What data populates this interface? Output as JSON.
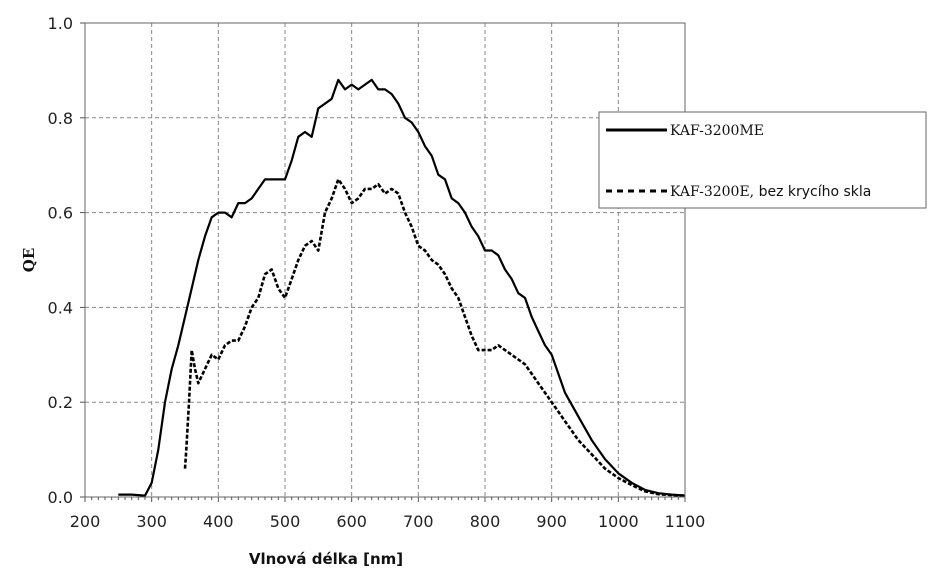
{
  "chart_data": {
    "type": "line",
    "xlabel": "Vlnová délka [nm]",
    "ylabel": "QE",
    "xlim": [
      200,
      1100
    ],
    "ylim": [
      0,
      1.0
    ],
    "x_ticks": [
      "200",
      "300",
      "400",
      "500",
      "600",
      "700",
      "800",
      "900",
      "1000",
      "1100"
    ],
    "y_ticks": [
      "0.0",
      "0.2",
      "0.4",
      "0.6",
      "0.8",
      "1.0"
    ],
    "grid": true,
    "legend_position": "right",
    "series": [
      {
        "name": "KAF-3200ME",
        "style": "solid",
        "x": [
          250,
          270,
          290,
          300,
          310,
          320,
          330,
          340,
          350,
          360,
          370,
          380,
          390,
          400,
          410,
          420,
          430,
          440,
          450,
          460,
          470,
          480,
          490,
          500,
          510,
          520,
          530,
          540,
          550,
          560,
          570,
          580,
          590,
          600,
          610,
          620,
          630,
          640,
          650,
          660,
          670,
          680,
          690,
          700,
          710,
          720,
          730,
          740,
          750,
          760,
          770,
          780,
          790,
          800,
          810,
          820,
          830,
          840,
          850,
          860,
          870,
          880,
          890,
          900,
          920,
          940,
          960,
          980,
          1000,
          1020,
          1040,
          1060,
          1080,
          1100
        ],
        "values": [
          0.005,
          0.005,
          0.003,
          0.03,
          0.1,
          0.2,
          0.27,
          0.32,
          0.38,
          0.44,
          0.5,
          0.55,
          0.59,
          0.6,
          0.6,
          0.59,
          0.62,
          0.62,
          0.63,
          0.65,
          0.67,
          0.67,
          0.67,
          0.67,
          0.71,
          0.76,
          0.77,
          0.76,
          0.82,
          0.83,
          0.84,
          0.88,
          0.86,
          0.87,
          0.86,
          0.87,
          0.88,
          0.86,
          0.86,
          0.85,
          0.83,
          0.8,
          0.79,
          0.77,
          0.74,
          0.72,
          0.68,
          0.67,
          0.63,
          0.62,
          0.6,
          0.57,
          0.55,
          0.52,
          0.52,
          0.51,
          0.48,
          0.46,
          0.43,
          0.42,
          0.38,
          0.35,
          0.32,
          0.3,
          0.22,
          0.17,
          0.12,
          0.08,
          0.05,
          0.03,
          0.015,
          0.008,
          0.005,
          0.003
        ]
      },
      {
        "name": "KAF-3200E, bez krycího skla",
        "style": "dashed",
        "x": [
          350,
          352,
          356,
          360,
          365,
          370,
          380,
          390,
          400,
          410,
          420,
          430,
          440,
          450,
          460,
          470,
          480,
          490,
          500,
          510,
          520,
          530,
          540,
          550,
          560,
          570,
          580,
          590,
          600,
          610,
          620,
          630,
          640,
          650,
          660,
          670,
          680,
          690,
          700,
          710,
          720,
          730,
          740,
          750,
          760,
          770,
          780,
          790,
          800,
          810,
          820,
          830,
          840,
          850,
          860,
          870,
          880,
          890,
          900,
          920,
          940,
          960,
          980,
          1000,
          1020,
          1040,
          1060,
          1080,
          1100
        ],
        "values": [
          0.06,
          0.1,
          0.2,
          0.31,
          0.27,
          0.24,
          0.27,
          0.3,
          0.29,
          0.32,
          0.33,
          0.33,
          0.36,
          0.4,
          0.42,
          0.47,
          0.48,
          0.44,
          0.42,
          0.46,
          0.5,
          0.53,
          0.54,
          0.52,
          0.6,
          0.63,
          0.67,
          0.65,
          0.62,
          0.63,
          0.65,
          0.65,
          0.66,
          0.64,
          0.65,
          0.64,
          0.6,
          0.57,
          0.53,
          0.52,
          0.5,
          0.49,
          0.47,
          0.44,
          0.42,
          0.38,
          0.34,
          0.31,
          0.31,
          0.31,
          0.32,
          0.31,
          0.3,
          0.29,
          0.28,
          0.26,
          0.24,
          0.22,
          0.2,
          0.16,
          0.12,
          0.09,
          0.06,
          0.04,
          0.025,
          0.012,
          0.006,
          0.004,
          0.003
        ]
      }
    ]
  },
  "legend": {
    "entries": [
      {
        "label": "KAF-3200ME",
        "style": "solid"
      },
      {
        "label_part1": "KAF-3200E,",
        "label_part2": " bez krycího skla",
        "style": "dashed"
      }
    ]
  }
}
